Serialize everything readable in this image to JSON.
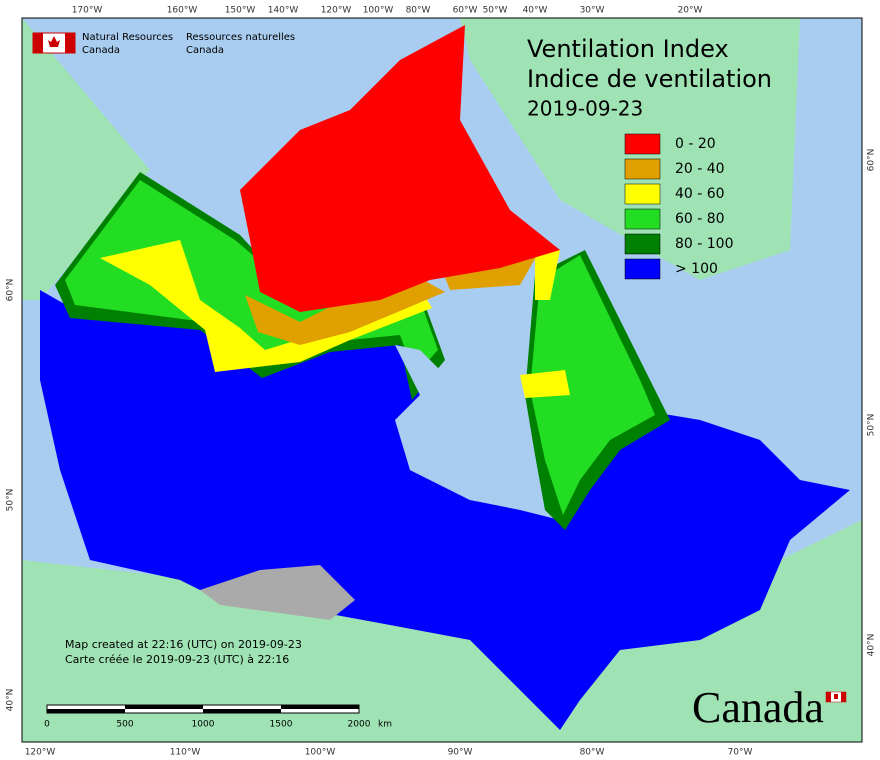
{
  "agency": {
    "en": [
      "Natural Resources",
      "Canada"
    ],
    "fr": [
      "Ressources naturelles",
      "Canada"
    ]
  },
  "title": [
    "Ventilation Index",
    "Indice de ventilation",
    "2019-09-23"
  ],
  "legend": [
    {
      "label": "0 - 20",
      "color": "#ff0000"
    },
    {
      "label": "20 - 40",
      "color": "#e0a000"
    },
    {
      "label": "40 - 60",
      "color": "#ffff00"
    },
    {
      "label": "60 - 80",
      "color": "#22dd22"
    },
    {
      "label": "80 - 100",
      "color": "#008000"
    },
    {
      "label": "> 100",
      "color": "#0000ff"
    }
  ],
  "longitude_top": [
    "170°W",
    "160°W",
    "150°W",
    "140°W",
    "120°W",
    "100°W",
    "80°W",
    "60°W",
    "50°W",
    "40°W",
    "30°W",
    "20°W"
  ],
  "longitude_bottom": [
    "120°W",
    "110°W",
    "100°W",
    "90°W",
    "80°W",
    "70°W"
  ],
  "latitude_left": [
    "60°N",
    "50°N",
    "40°N"
  ],
  "latitude_right": [
    "60°N",
    "50°N",
    "40°N"
  ],
  "note": [
    "Map created at 22:16 (UTC) on 2019-09-23",
    "Carte créée le 2019-09-23 (UTC) à 22:16"
  ],
  "scale": {
    "labels": [
      "0",
      "500",
      "1000",
      "1500",
      "2000"
    ],
    "unit": "km"
  },
  "wordmark": "Canada"
}
